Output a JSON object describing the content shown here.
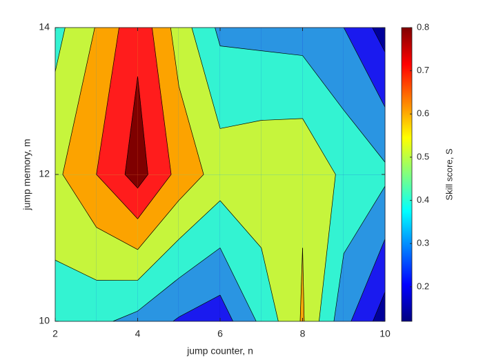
{
  "chart_data": {
    "type": "contourf",
    "x": [
      2,
      3,
      4,
      5,
      6,
      7,
      8,
      9,
      10
    ],
    "y": [
      10,
      12,
      14
    ],
    "z": [
      [
        0.4,
        0.38,
        0.33,
        0.26,
        0.22,
        0.38,
        0.55,
        0.3,
        0.13
      ],
      [
        0.52,
        0.63,
        0.76,
        0.6,
        0.5,
        0.52,
        0.53,
        0.43,
        0.38
      ],
      [
        0.42,
        0.545,
        0.7,
        0.5,
        0.34,
        0.33,
        0.32,
        0.27,
        0.14
      ]
    ],
    "levels": [
      0.18,
      0.27,
      0.36,
      0.45,
      0.54,
      0.63,
      0.72
    ],
    "colors": [
      "#00009a",
      "#1a1aef",
      "#2a95e2",
      "#33f3d2",
      "#c6f53c",
      "#fca300",
      "#ff1c1c",
      "#7f0000"
    ],
    "xlabel": "jump counter, n",
    "ylabel": "jump memory, m",
    "xlim": [
      2,
      10
    ],
    "ylim": [
      10,
      14
    ],
    "xticks": [
      2,
      4,
      6,
      8,
      10
    ],
    "yticks": [
      10,
      12,
      14
    ],
    "colorbar": {
      "label": "Skill score, S",
      "lim": [
        0.12,
        0.8
      ],
      "ticks": [
        0.2,
        0.3,
        0.4,
        0.5,
        0.6,
        0.7,
        0.8
      ]
    }
  }
}
